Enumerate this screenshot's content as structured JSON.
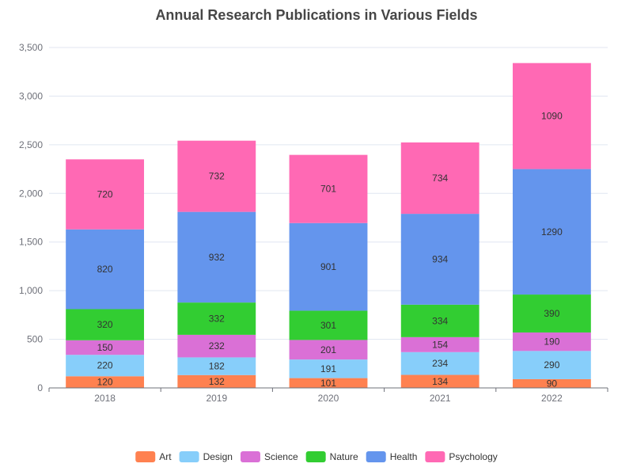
{
  "chart_data": {
    "type": "bar",
    "stacked": true,
    "title": "Annual Research Publications in Various Fields",
    "xlabel": "",
    "ylabel": "",
    "categories": [
      "2018",
      "2019",
      "2020",
      "2021",
      "2022"
    ],
    "ylim": [
      0,
      3500
    ],
    "yticks": [
      0,
      500,
      1000,
      1500,
      2000,
      2500,
      3000,
      3500
    ],
    "ytick_labels": [
      "0",
      "500",
      "1,000",
      "1,500",
      "2,000",
      "2,500",
      "3,000",
      "3,500"
    ],
    "grid": true,
    "legend_position": "bottom",
    "series": [
      {
        "name": "Art",
        "color": "#ff8150",
        "values": [
          120,
          132,
          101,
          134,
          90
        ]
      },
      {
        "name": "Design",
        "color": "#87cefa",
        "values": [
          220,
          182,
          191,
          234,
          290
        ]
      },
      {
        "name": "Science",
        "color": "#da70d6",
        "values": [
          150,
          232,
          201,
          154,
          190
        ]
      },
      {
        "name": "Nature",
        "color": "#32cd32",
        "values": [
          320,
          332,
          301,
          334,
          390
        ]
      },
      {
        "name": "Health",
        "color": "#6495ed",
        "values": [
          820,
          932,
          901,
          934,
          1290
        ]
      },
      {
        "name": "Psychology",
        "color": "#ff69b4",
        "values": [
          720,
          732,
          701,
          734,
          1090
        ]
      }
    ]
  }
}
